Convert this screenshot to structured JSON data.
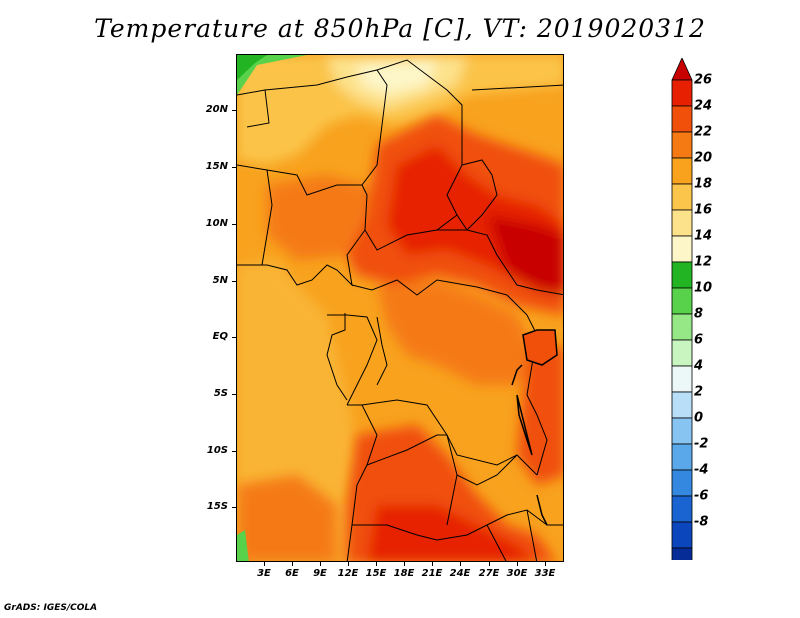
{
  "title": "Temperature at 850hPa [C], VT: 2019020312",
  "credit": "GrADS: IGES/COLA",
  "lat_labels": [
    "20N",
    "15N",
    "10N",
    "5N",
    "EQ",
    "5S",
    "10S",
    "15S"
  ],
  "lon_labels": [
    "3E",
    "6E",
    "9E",
    "12E",
    "15E",
    "18E",
    "21E",
    "24E",
    "27E",
    "30E",
    "33E"
  ],
  "colorbar": {
    "labels": [
      "26",
      "24",
      "22",
      "20",
      "18",
      "16",
      "14",
      "12",
      "10",
      "8",
      "6",
      "4",
      "2",
      "0",
      "-2",
      "-4",
      "-6",
      "-8"
    ],
    "colors": [
      "#c80000",
      "#e62000",
      "#f0500a",
      "#f57a14",
      "#f8a21e",
      "#fbc44a",
      "#fde28c",
      "#fdf6c8",
      "#22b422",
      "#58d24a",
      "#96e886",
      "#c8f5c0",
      "#ecf8f8",
      "#b8def8",
      "#88c4f2",
      "#5aa8ea",
      "#3488e0",
      "#1a64d2",
      "#0c46bc",
      "#062c98",
      "#000a6a",
      "#d2d2f0"
    ]
  }
}
